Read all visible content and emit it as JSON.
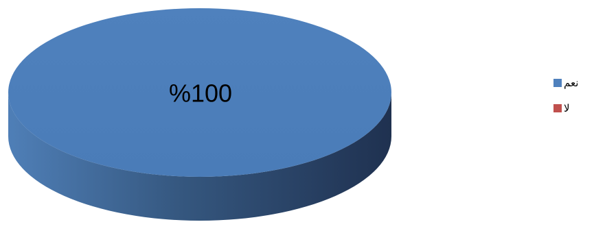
{
  "chart_data": {
    "type": "pie",
    "style": "3d",
    "categories": [
      "نعم",
      "لا"
    ],
    "values": [
      100,
      0
    ],
    "data_labels": [
      "%100",
      ""
    ],
    "colors": [
      "#4F81BD",
      "#C0504D"
    ],
    "legend_position": "right"
  }
}
